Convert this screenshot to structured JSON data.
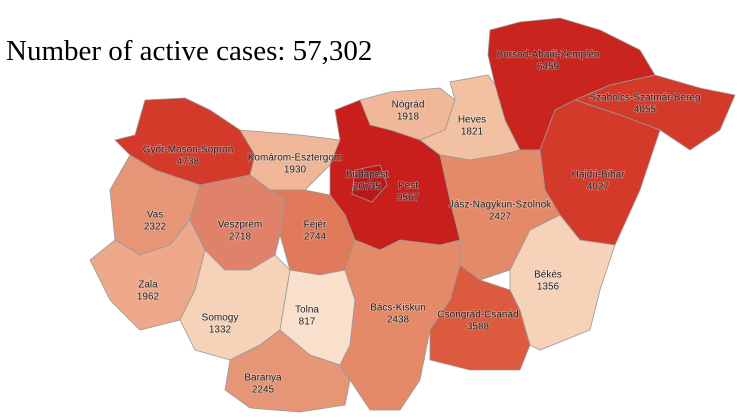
{
  "title": "Number of active cases: 57,302",
  "regions": [
    {
      "name": "Borsod-Abaúj-Zemplén",
      "value": 6459,
      "color": "#c9241e"
    },
    {
      "name": "Szabolcs-Szatmár-Bereg",
      "value": 4055,
      "color": "#d43a2a"
    },
    {
      "name": "Nógrád",
      "value": 1918,
      "color": "#f0b898"
    },
    {
      "name": "Heves",
      "value": 1821,
      "color": "#f2c1a2"
    },
    {
      "name": "Győr-Moson-Sopron",
      "value": 4738,
      "color": "#d43a2a"
    },
    {
      "name": "Komárom-Esztergom",
      "value": 1930,
      "color": "#efb697"
    },
    {
      "name": "Budapest",
      "value": 20735,
      "color": "#b81818"
    },
    {
      "name": "Pest",
      "value": 9567,
      "color": "#c81f1c"
    },
    {
      "name": "Hajdú-Bihar",
      "value": 4027,
      "color": "#d43a2a"
    },
    {
      "name": "Jász-Nagykun-Szolnok",
      "value": 2427,
      "color": "#e58a68"
    },
    {
      "name": "Vas",
      "value": 2322,
      "color": "#e69676"
    },
    {
      "name": "Veszprém",
      "value": 2718,
      "color": "#e0826a"
    },
    {
      "name": "Fejér",
      "value": 2744,
      "color": "#e07a5a"
    },
    {
      "name": "Zala",
      "value": 1962,
      "color": "#eda98a"
    },
    {
      "name": "Somogy",
      "value": 1332,
      "color": "#f5d2b8"
    },
    {
      "name": "Tolna",
      "value": 817,
      "color": "#f9e0cc"
    },
    {
      "name": "Bács-Kiskun",
      "value": 2438,
      "color": "#e58a68"
    },
    {
      "name": "Csongrád-Csanád",
      "value": 3588,
      "color": "#dc5a3e"
    },
    {
      "name": "Békés",
      "value": 1356,
      "color": "#f5d2b8"
    },
    {
      "name": "Baranya",
      "value": 2245,
      "color": "#e69676"
    }
  ]
}
